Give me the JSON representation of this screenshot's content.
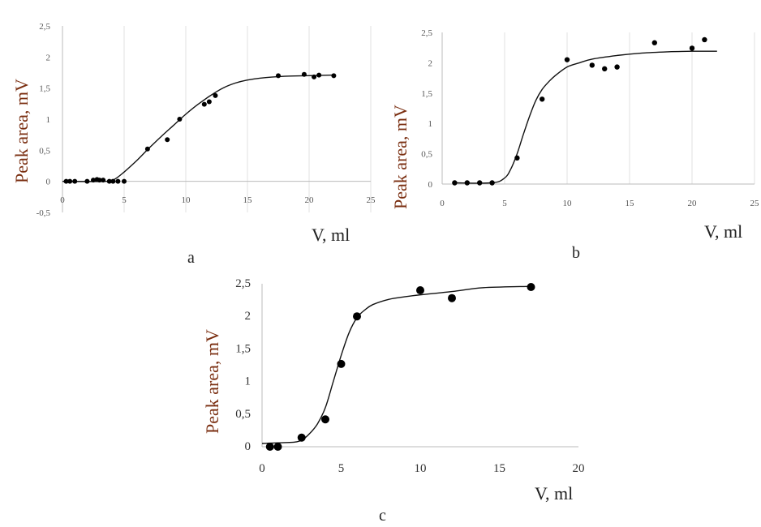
{
  "chart_data": [
    {
      "type": "scatter",
      "panel_label": "a",
      "xlabel": "V, ml",
      "ylabel": "Peak area, mV",
      "xlim": [
        0,
        25
      ],
      "ylim": [
        -0.5,
        2.5
      ],
      "x_ticks": [
        0,
        5,
        10,
        15,
        20,
        25
      ],
      "x_tick_labels": [
        "0",
        "5",
        "10",
        "15",
        "20",
        "25"
      ],
      "y_ticks": [
        -0.5,
        0,
        0.5,
        1,
        1.5,
        2,
        2.5
      ],
      "y_tick_labels": [
        "-0,5",
        "0",
        "0,5",
        "1",
        "1,5",
        "2",
        "2,5"
      ],
      "grid": "vertical",
      "series": [
        {
          "kind": "points",
          "x": [
            0.3,
            0.6,
            1.0,
            2.0,
            2.5,
            2.8,
            3.0,
            3.3,
            3.8,
            4.1,
            4.5,
            5.0,
            6.9,
            8.5,
            9.5,
            11.5,
            11.9,
            12.4,
            17.5,
            19.6,
            20.4,
            20.8,
            22.0
          ],
          "y": [
            0,
            0,
            0,
            0,
            0.02,
            0.03,
            0.02,
            0.02,
            0,
            0,
            0,
            0,
            0.52,
            0.67,
            1.0,
            1.24,
            1.28,
            1.38,
            1.7,
            1.72,
            1.68,
            1.71,
            1.7
          ]
        },
        {
          "kind": "fit",
          "x": [
            0,
            3.5,
            4.2,
            5,
            6,
            7,
            8,
            9,
            10,
            11,
            12,
            13,
            14,
            15,
            16,
            18,
            20,
            22
          ],
          "y": [
            0,
            0,
            0.03,
            0.15,
            0.33,
            0.53,
            0.72,
            0.9,
            1.08,
            1.24,
            1.38,
            1.5,
            1.58,
            1.63,
            1.66,
            1.69,
            1.7,
            1.71
          ]
        }
      ]
    },
    {
      "type": "scatter",
      "panel_label": "b",
      "xlabel": "V, ml",
      "ylabel": "Peak area, mV",
      "xlim": [
        0,
        25
      ],
      "ylim": [
        0,
        2.5
      ],
      "x_ticks": [
        0,
        5,
        10,
        15,
        20,
        25
      ],
      "x_tick_labels": [
        "0",
        "5",
        "10",
        "15",
        "20",
        "25"
      ],
      "y_ticks": [
        0,
        0.5,
        1,
        1.5,
        2,
        2.5
      ],
      "y_tick_labels": [
        "0",
        "0,5",
        "1",
        "1,5",
        "2",
        "2,5"
      ],
      "grid": "vertical",
      "series": [
        {
          "kind": "points",
          "x": [
            1,
            2,
            3,
            4,
            6,
            8,
            10,
            12,
            13,
            14,
            17,
            20,
            21
          ],
          "y": [
            0.02,
            0.02,
            0.02,
            0.02,
            0.43,
            1.4,
            2.05,
            1.96,
            1.9,
            1.93,
            2.33,
            2.24,
            2.38
          ]
        },
        {
          "kind": "fit",
          "x": [
            1,
            4,
            5,
            5.5,
            6,
            6.5,
            7,
            7.5,
            8,
            8.5,
            9,
            10,
            11,
            12,
            14,
            16,
            18,
            20,
            22
          ],
          "y": [
            0.02,
            0.02,
            0.1,
            0.25,
            0.5,
            0.82,
            1.12,
            1.38,
            1.56,
            1.68,
            1.78,
            1.93,
            2.0,
            2.06,
            2.12,
            2.16,
            2.18,
            2.19,
            2.19
          ]
        }
      ]
    },
    {
      "type": "scatter",
      "panel_label": "c",
      "xlabel": "V, ml",
      "ylabel": "Peak area, mV",
      "xlim": [
        0,
        20
      ],
      "ylim": [
        0,
        2.5
      ],
      "x_ticks": [
        0,
        5,
        10,
        15,
        20
      ],
      "x_tick_labels": [
        "0",
        "5",
        "10",
        "15",
        "20"
      ],
      "y_ticks": [
        0,
        0.5,
        1,
        1.5,
        2,
        2.5
      ],
      "y_tick_labels": [
        "0",
        "0,5",
        "1",
        "1,5",
        "2",
        "2,5"
      ],
      "grid": "none",
      "series": [
        {
          "kind": "points",
          "x": [
            0.5,
            1.0,
            2.5,
            4.0,
            5.0,
            6.0,
            10.0,
            12.0,
            17.0
          ],
          "y": [
            0.0,
            0.0,
            0.14,
            0.42,
            1.27,
            2.0,
            2.4,
            2.28,
            2.45
          ]
        },
        {
          "kind": "fit",
          "x": [
            0,
            1,
            2,
            2.5,
            3,
            3.5,
            4,
            4.5,
            5,
            5.5,
            6,
            6.5,
            7,
            8,
            9,
            10,
            12,
            14,
            17
          ],
          "y": [
            0.05,
            0.06,
            0.07,
            0.1,
            0.2,
            0.35,
            0.6,
            1.0,
            1.4,
            1.75,
            1.98,
            2.1,
            2.18,
            2.26,
            2.3,
            2.33,
            2.38,
            2.44,
            2.46
          ]
        }
      ]
    }
  ]
}
